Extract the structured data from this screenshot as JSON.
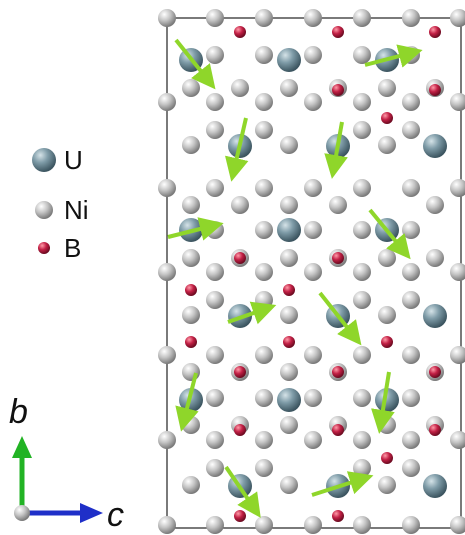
{
  "legend": {
    "items": [
      {
        "symbol": "U",
        "label": "U",
        "color": "#6f8f9c"
      },
      {
        "symbol": "Ni",
        "label": "Ni",
        "color": "#b9b9b9"
      },
      {
        "symbol": "B",
        "label": "B",
        "color": "#b2183f"
      }
    ]
  },
  "axes": {
    "vertical_label": "b",
    "horizontal_label": "c",
    "vertical_color": "#22b324",
    "horizontal_color": "#1f2fc8"
  },
  "moment_arrow_color": "#8fd62a",
  "cell_outline_color": "#222222"
}
